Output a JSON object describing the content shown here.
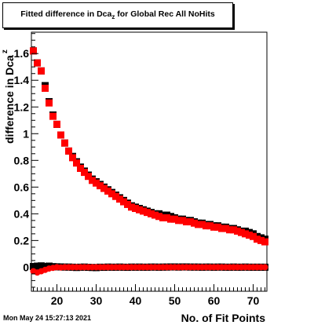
{
  "title": {
    "main": "Fitted difference in Dca",
    "sub": "z",
    "rest": " for Global Rec All NoHits"
  },
  "timestamp": "Mon May 24 15:27:13 2021",
  "chart_data": {
    "type": "scatter",
    "xlabel": "No. of Fit Points",
    "ylabel": "difference in Dca",
    "ylabel_sub": "z",
    "xlim": [
      13.5,
      73.5
    ],
    "ylim": [
      -0.18,
      1.76
    ],
    "x_ticks": [
      "20",
      "30",
      "40",
      "50",
      "60",
      "70"
    ],
    "y_ticks": [
      "0",
      "0.2",
      "0.4",
      "0.6",
      "0.8",
      "1",
      "1.2",
      "1.4",
      "1.6"
    ],
    "colors": {
      "red": "#ff0000",
      "black": "#000000"
    },
    "x": [
      14,
      15,
      16,
      17,
      18,
      19,
      20,
      21,
      22,
      23,
      24,
      25,
      26,
      27,
      28,
      29,
      30,
      31,
      32,
      33,
      34,
      35,
      36,
      37,
      38,
      39,
      40,
      41,
      42,
      43,
      44,
      45,
      46,
      47,
      48,
      49,
      50,
      51,
      52,
      53,
      54,
      55,
      56,
      57,
      58,
      59,
      60,
      61,
      62,
      63,
      64,
      65,
      66,
      67,
      68,
      69,
      70,
      71,
      72,
      73
    ],
    "series": [
      {
        "marker": "square",
        "color": "black",
        "values": [
          1.62,
          1.53,
          1.47,
          1.36,
          1.24,
          1.14,
          1.07,
          0.99,
          0.93,
          0.87,
          0.83,
          0.79,
          0.75,
          0.72,
          0.69,
          0.66,
          0.64,
          0.62,
          0.6,
          0.58,
          0.56,
          0.54,
          0.52,
          0.5,
          0.48,
          0.46,
          0.45,
          0.44,
          0.43,
          0.42,
          0.41,
          0.4,
          0.4,
          0.39,
          0.39,
          0.38,
          0.37,
          0.36,
          0.36,
          0.35,
          0.35,
          0.34,
          0.33,
          0.33,
          0.32,
          0.32,
          0.31,
          0.31,
          0.3,
          0.3,
          0.29,
          0.29,
          0.28,
          0.27,
          0.27,
          0.26,
          0.25,
          0.23,
          0.22,
          0.21
        ]
      },
      {
        "marker": "square",
        "color": "red",
        "values": [
          1.62,
          1.53,
          1.47,
          1.34,
          1.23,
          1.13,
          1.07,
          0.99,
          0.93,
          0.87,
          0.82,
          0.78,
          0.74,
          0.71,
          0.68,
          0.65,
          0.63,
          0.61,
          0.59,
          0.57,
          0.55,
          0.53,
          0.51,
          0.49,
          0.47,
          0.45,
          0.44,
          0.43,
          0.42,
          0.41,
          0.4,
          0.39,
          0.38,
          0.37,
          0.37,
          0.36,
          0.36,
          0.35,
          0.35,
          0.34,
          0.34,
          0.33,
          0.32,
          0.32,
          0.31,
          0.31,
          0.3,
          0.3,
          0.29,
          0.29,
          0.28,
          0.28,
          0.27,
          0.26,
          0.25,
          0.24,
          0.23,
          0.21,
          0.2,
          0.19
        ]
      },
      {
        "marker": "square",
        "color": "black",
        "values": [
          0.005,
          0.008,
          0.01,
          0.005,
          0.008,
          0.004,
          0.003,
          0.002,
          0.001,
          0.001,
          0.0,
          -0.002,
          0.0,
          0.001,
          -0.001,
          -0.002,
          -0.003,
          0.0,
          -0.001,
          0.001,
          0.0,
          0.0,
          0.001,
          0.0,
          -0.001,
          0.001,
          0.0,
          0.001,
          0.0,
          0.0,
          0.001,
          0.001,
          0.0,
          0.001,
          0.001,
          0.002,
          0.002,
          0.001,
          0.002,
          0.002,
          0.001,
          0.001,
          0.001,
          0.0,
          0.001,
          0.001,
          0.0,
          0.001,
          0.001,
          0.0,
          0.0,
          0.001,
          0.0,
          0.0,
          0.001,
          0.0,
          0.0,
          0.0,
          0.0,
          0.0
        ]
      },
      {
        "marker": "circle",
        "color": "red",
        "values": [
          -0.03,
          -0.04,
          -0.03,
          -0.02,
          -0.01,
          -0.005,
          0.0,
          -0.002,
          0.0,
          0.0,
          0.0,
          0.0,
          0.0,
          0.0,
          0.0,
          0.0,
          0.0,
          0.0,
          0.0,
          0.0,
          0.0,
          0.0,
          0.0,
          0.0,
          0.0,
          0.0,
          0.0,
          0.0,
          0.0,
          0.0,
          0.0,
          0.0,
          0.0,
          0.0,
          0.0,
          0.0,
          0.0,
          0.0,
          0.0,
          0.0,
          0.0,
          0.0,
          0.0,
          0.0,
          0.0,
          0.0,
          0.0,
          0.0,
          0.0,
          0.0,
          0.0,
          0.0,
          0.0,
          0.0,
          0.0,
          0.0,
          0.0,
          0.0,
          0.0,
          0.0
        ]
      }
    ]
  }
}
